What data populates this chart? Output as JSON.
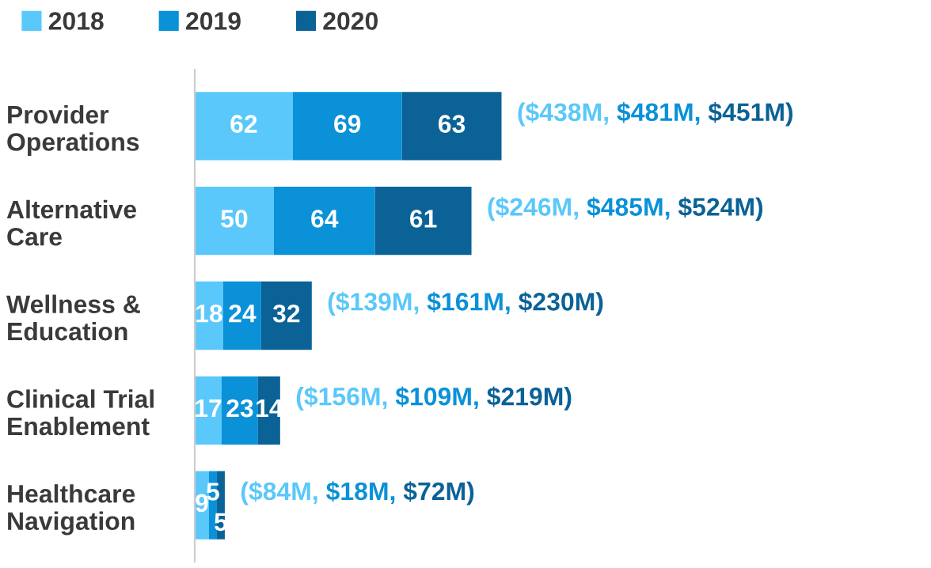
{
  "chart_data": {
    "type": "bar",
    "orientation": "horizontal",
    "stacked": true,
    "legend": "top left",
    "tick_labels": "y",
    "data_labels": true,
    "categories": [
      "Provider\nOperations",
      "Alternative\nCare",
      "Wellness &\nEducation",
      "Clinical Trial\nEnablement",
      "Healthcare\nNavigation"
    ],
    "series": [
      {
        "name": "2018",
        "color": "#5ac8fa",
        "values": [
          62,
          50,
          18,
          17,
          9
        ]
      },
      {
        "name": "2019",
        "color": "#0a91d8",
        "values": [
          69,
          64,
          24,
          23,
          5
        ]
      },
      {
        "name": "2020",
        "color": "#0b6297",
        "values": [
          63,
          61,
          32,
          14,
          5
        ]
      }
    ],
    "annotations": [
      "($438M, $481M, $451M)",
      "($246M, $485M, $524M)",
      "($139M, $161M, $230M)",
      "($156M, $109M, $219M)",
      "($84M, $18M, $72M)"
    ]
  }
}
